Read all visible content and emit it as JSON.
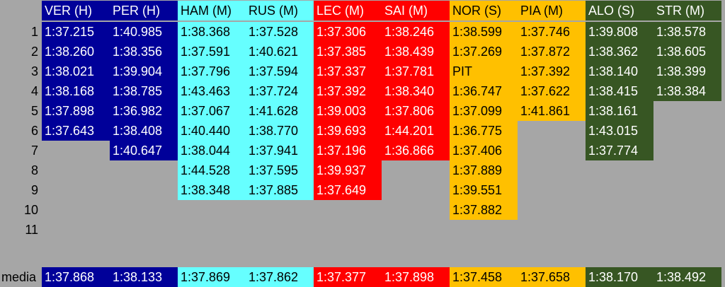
{
  "colors": {
    "background": "#a6a6a6",
    "red_bull": "#000099",
    "mercedes": "#66ffff",
    "ferrari": "#ff0000",
    "mclaren": "#ffc000",
    "aston_martin": "#375623"
  },
  "row_labels": [
    "1",
    "2",
    "3",
    "4",
    "5",
    "6",
    "7",
    "8",
    "9",
    "10",
    "11"
  ],
  "media_label": "media",
  "drivers": [
    {
      "header": "VER (H)",
      "team": "red_bull",
      "laps": [
        "1:37.215",
        "1:38.260",
        "1:38.021",
        "1:38.168",
        "1:37.898",
        "1:37.643"
      ],
      "media": "1:37.868"
    },
    {
      "header": "PER (H)",
      "team": "red_bull",
      "laps": [
        "1:40.985",
        "1:38.356",
        "1:39.904",
        "1:38.785",
        "1:36.982",
        "1:38.408",
        "1:40.647"
      ],
      "media": "1:38.133"
    },
    {
      "header": "HAM (M)",
      "team": "mercedes",
      "laps": [
        "1:38.368",
        "1:37.591",
        "1:37.796",
        "1:43.463",
        "1:37.067",
        "1:40.440",
        "1:38.044",
        "1:44.528",
        "1:38.348"
      ],
      "media": "1:37.869"
    },
    {
      "header": "RUS (M)",
      "team": "mercedes",
      "laps": [
        "1:37.528",
        "1:40.621",
        "1:37.594",
        "1:37.724",
        "1:41.628",
        "1:38.770",
        "1:37.941",
        "1:37.595",
        "1:37.885"
      ],
      "media": "1:37.862"
    },
    {
      "header": "LEC (M)",
      "team": "ferrari",
      "laps": [
        "1:37.306",
        "1:37.385",
        "1:37.337",
        "1:37.392",
        "1:39.003",
        "1:39.693",
        "1:37.196",
        "1:39.937",
        "1:37.649"
      ],
      "media": "1:37.377"
    },
    {
      "header": "SAI (M)",
      "team": "ferrari",
      "laps": [
        "1:38.246",
        "1:38.439",
        "1:37.781",
        "1:38.340",
        "1:37.806",
        "1:44.201",
        "1:36.866"
      ],
      "media": "1:37.898"
    },
    {
      "header": "NOR (S)",
      "team": "mclaren",
      "laps": [
        "1:38.599",
        "1:37.269",
        "PIT",
        "1:36.747",
        "1:37.099",
        "1:36.775",
        "1:37.406",
        "1:37.889",
        "1:39.551",
        "1:37.882"
      ],
      "media": "1:37.458"
    },
    {
      "header": "PIA (M)",
      "team": "mclaren",
      "laps": [
        "1:37.746",
        "1:37.872",
        "1:37.392",
        "1:37.622",
        "1:41.861"
      ],
      "media": "1:37.658"
    },
    {
      "header": "ALO (S)",
      "team": "aston_martin",
      "laps": [
        "1:39.808",
        "1:38.362",
        "1:38.140",
        "1:38.415",
        "1:38.161",
        "1:43.015",
        "1:37.774"
      ],
      "media": "1:38.170"
    },
    {
      "header": "STR (M)",
      "team": "aston_martin",
      "laps": [
        "1:38.578",
        "1:38.605",
        "1:38.399",
        "1:38.384"
      ],
      "media": "1:38.492"
    }
  ]
}
